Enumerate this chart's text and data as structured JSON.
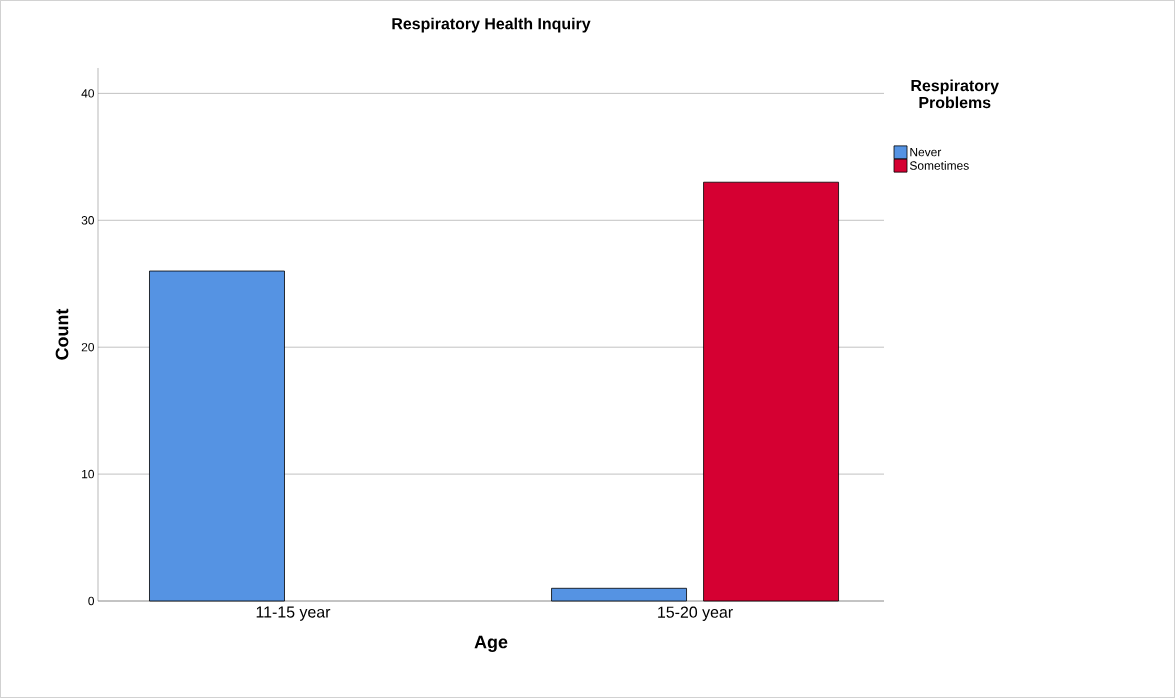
{
  "chart_data": {
    "type": "bar",
    "title": "Respiratory Health Inquiry",
    "xlabel": "Age",
    "ylabel": "Count",
    "legend_title": "Respiratory Problems",
    "categories": [
      "11-15 year",
      "15-20 year"
    ],
    "series": [
      {
        "name": "Never",
        "color": "#5593e3",
        "values": [
          26,
          1
        ]
      },
      {
        "name": "Sometimes",
        "color": "#d50032",
        "values": [
          null,
          33
        ]
      }
    ],
    "ylim": [
      0,
      42
    ],
    "yticks": [
      0,
      10,
      20,
      30,
      40
    ],
    "grid": "y",
    "legend": "top right"
  }
}
